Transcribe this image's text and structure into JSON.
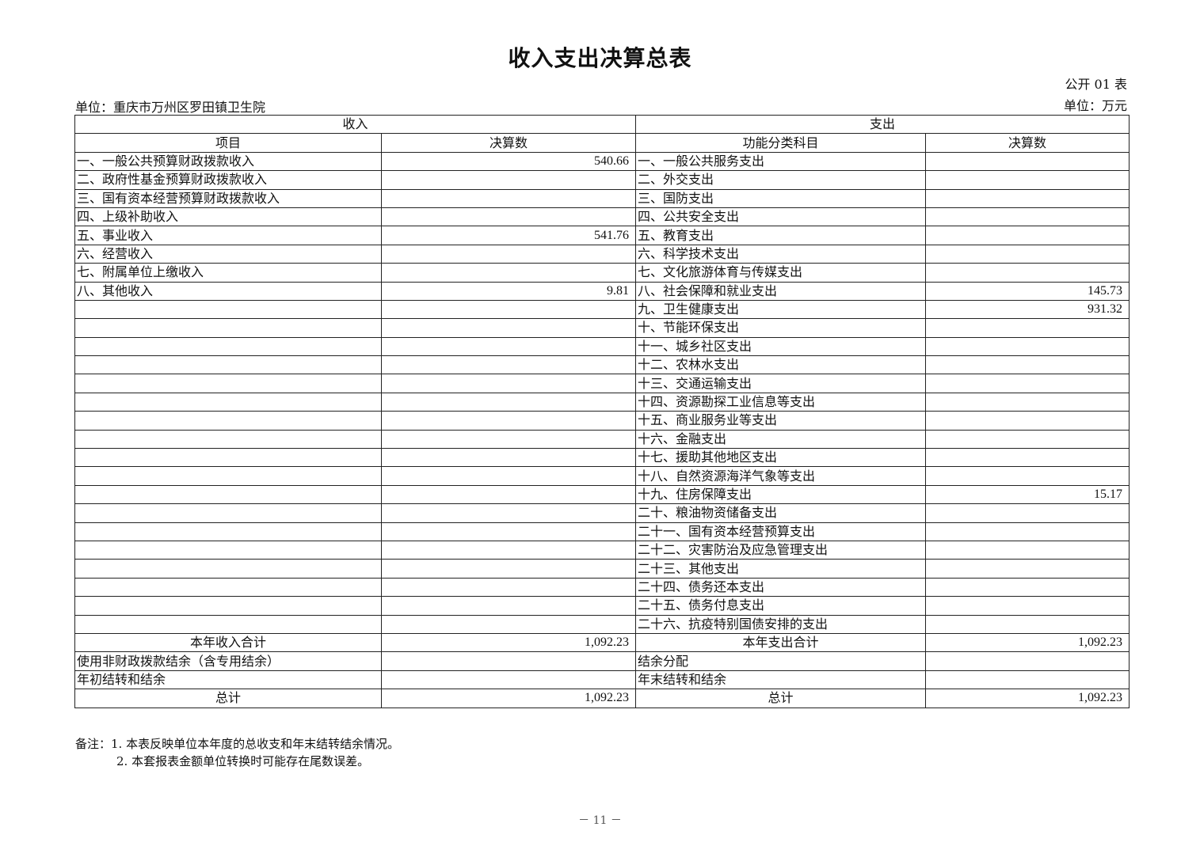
{
  "title": "收入支出决算总表",
  "form_no": "公开 01 表",
  "unit_org": "单位：重庆市万州区罗田镇卫生院",
  "unit_money": "单位：万元",
  "headers": {
    "income": "收入",
    "expense": "支出",
    "income_item": "项目",
    "income_amount": "决算数",
    "expense_item": "功能分类科目",
    "expense_amount": "决算数"
  },
  "rows": [
    {
      "income_item": "一、一般公共预算财政拨款收入",
      "income_amount": "540.66",
      "expense_item": "一、一般公共服务支出",
      "expense_amount": ""
    },
    {
      "income_item": "二、政府性基金预算财政拨款收入",
      "income_amount": "",
      "expense_item": "二、外交支出",
      "expense_amount": ""
    },
    {
      "income_item": "三、国有资本经营预算财政拨款收入",
      "income_amount": "",
      "expense_item": "三、国防支出",
      "expense_amount": ""
    },
    {
      "income_item": "四、上级补助收入",
      "income_amount": "",
      "expense_item": "四、公共安全支出",
      "expense_amount": ""
    },
    {
      "income_item": "五、事业收入",
      "income_amount": "541.76",
      "expense_item": "五、教育支出",
      "expense_amount": ""
    },
    {
      "income_item": "六、经营收入",
      "income_amount": "",
      "expense_item": "六、科学技术支出",
      "expense_amount": ""
    },
    {
      "income_item": "七、附属单位上缴收入",
      "income_amount": "",
      "expense_item": "七、文化旅游体育与传媒支出",
      "expense_amount": ""
    },
    {
      "income_item": "八、其他收入",
      "income_amount": "9.81",
      "expense_item": "八、社会保障和就业支出",
      "expense_amount": "145.73"
    },
    {
      "income_item": "",
      "income_amount": "",
      "expense_item": "九、卫生健康支出",
      "expense_amount": "931.32"
    },
    {
      "income_item": "",
      "income_amount": "",
      "expense_item": "十、节能环保支出",
      "expense_amount": ""
    },
    {
      "income_item": "",
      "income_amount": "",
      "expense_item": "十一、城乡社区支出",
      "expense_amount": ""
    },
    {
      "income_item": "",
      "income_amount": "",
      "expense_item": "十二、农林水支出",
      "expense_amount": ""
    },
    {
      "income_item": "",
      "income_amount": "",
      "expense_item": "十三、交通运输支出",
      "expense_amount": ""
    },
    {
      "income_item": "",
      "income_amount": "",
      "expense_item": "十四、资源勘探工业信息等支出",
      "expense_amount": ""
    },
    {
      "income_item": "",
      "income_amount": "",
      "expense_item": "十五、商业服务业等支出",
      "expense_amount": ""
    },
    {
      "income_item": "",
      "income_amount": "",
      "expense_item": "十六、金融支出",
      "expense_amount": ""
    },
    {
      "income_item": "",
      "income_amount": "",
      "expense_item": "十七、援助其他地区支出",
      "expense_amount": ""
    },
    {
      "income_item": "",
      "income_amount": "",
      "expense_item": "十八、自然资源海洋气象等支出",
      "expense_amount": ""
    },
    {
      "income_item": "",
      "income_amount": "",
      "expense_item": "十九、住房保障支出",
      "expense_amount": "15.17"
    },
    {
      "income_item": "",
      "income_amount": "",
      "expense_item": "二十、粮油物资储备支出",
      "expense_amount": ""
    },
    {
      "income_item": "",
      "income_amount": "",
      "expense_item": "二十一、国有资本经营预算支出",
      "expense_amount": ""
    },
    {
      "income_item": "",
      "income_amount": "",
      "expense_item": "二十二、灾害防治及应急管理支出",
      "expense_amount": ""
    },
    {
      "income_item": "",
      "income_amount": "",
      "expense_item": "二十三、其他支出",
      "expense_amount": ""
    },
    {
      "income_item": "",
      "income_amount": "",
      "expense_item": "二十四、债务还本支出",
      "expense_amount": ""
    },
    {
      "income_item": "",
      "income_amount": "",
      "expense_item": "二十五、债务付息支出",
      "expense_amount": ""
    },
    {
      "income_item": "",
      "income_amount": "",
      "expense_item": "二十六、抗疫特别国债安排的支出",
      "expense_amount": ""
    }
  ],
  "summary_rows": [
    {
      "income_item": "本年收入合计",
      "income_amount": "1,092.23",
      "expense_item": "本年支出合计",
      "expense_amount": "1,092.23",
      "centered": true
    },
    {
      "income_item": "使用非财政拨款结余（含专用结余）",
      "income_amount": "",
      "expense_item": "结余分配",
      "expense_amount": "",
      "centered": false
    },
    {
      "income_item": "年初结转和结余",
      "income_amount": "",
      "expense_item": "年末结转和结余",
      "expense_amount": "",
      "centered": false
    },
    {
      "income_item": "总计",
      "income_amount": "1,092.23",
      "expense_item": "总计",
      "expense_amount": "1,092.23",
      "centered": true
    }
  ],
  "notes": [
    "备注：1. 本表反映单位本年度的总收支和年末结转结余情况。",
    "2. 本套报表金额单位转换时可能存在尾数误差。"
  ],
  "page_number": "－ 11 －"
}
